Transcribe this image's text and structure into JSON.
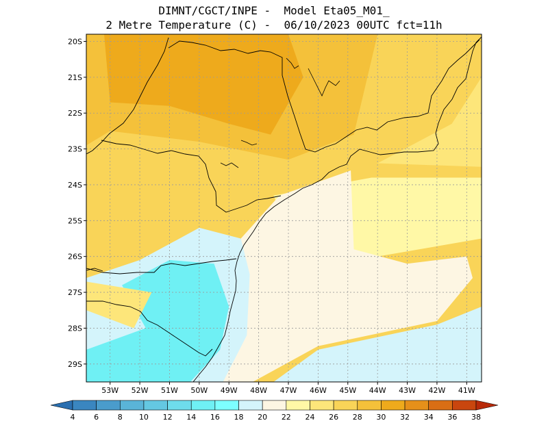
{
  "header": {
    "line1": "DIMNT/CGCT/INPE -  Model Eta05_M01_",
    "line2": "2 Metre Temperature (C) -  06/10/2023 00UTC fct=11h"
  },
  "lat_labels": [
    "20S",
    "21S",
    "22S",
    "23S",
    "24S",
    "25S",
    "26S",
    "27S",
    "28S",
    "29S"
  ],
  "lon_labels": [
    "53W",
    "52W",
    "51W",
    "50W",
    "49W",
    "48W",
    "47W",
    "46W",
    "45W",
    "44W",
    "43W",
    "42W",
    "41W"
  ],
  "colorbar": {
    "ticks": [
      "4",
      "6",
      "8",
      "10",
      "12",
      "14",
      "16",
      "18",
      "20",
      "22",
      "24",
      "26",
      "28",
      "30",
      "32",
      "34",
      "36",
      "38"
    ],
    "colors": [
      "#2a6fb0",
      "#3a86c0",
      "#4a9ccc",
      "#5ab4d8",
      "#64c8e2",
      "#6edcec",
      "#6ff0f4",
      "#7dffff",
      "#d4f4fb",
      "#fdf6e3",
      "#fff8a6",
      "#fde67a",
      "#f9d458",
      "#f4c13a",
      "#eeaa1c",
      "#e6901a",
      "#d96e14",
      "#c9460e",
      "#b82a0a"
    ]
  },
  "chart_data": {
    "type": "heatmap",
    "variable": "2 Metre Temperature (C)",
    "lon_range": [
      -53.8,
      -40.5
    ],
    "lat_range": [
      -29.5,
      -19.8
    ],
    "color_scale": [
      4,
      38
    ],
    "regions": [
      {
        "cls": "26-28",
        "lon_lat": [
          [
            -53.8,
            -19.8
          ],
          [
            -40.5,
            -19.8
          ],
          [
            -40.5,
            -22.6
          ],
          [
            -45,
            -23.4
          ],
          [
            -47.5,
            -24.3
          ],
          [
            -50,
            -24.8
          ],
          [
            -53.8,
            -24.9
          ]
        ]
      },
      {
        "cls": "28-30",
        "lon_lat": [
          [
            -53.8,
            -19.8
          ],
          [
            -44,
            -19.8
          ],
          [
            -44.8,
            -22.6
          ],
          [
            -47,
            -23.3
          ],
          [
            -50,
            -22.8
          ],
          [
            -53,
            -22.5
          ],
          [
            -53.8,
            -22.9
          ]
        ]
      },
      {
        "cls": "30-32",
        "lon_lat": [
          [
            -53.2,
            -19.8
          ],
          [
            -47,
            -19.8
          ],
          [
            -46.5,
            -21
          ],
          [
            -47.6,
            -22.6
          ],
          [
            -49,
            -22.3
          ],
          [
            -51,
            -21.8
          ],
          [
            -53,
            -21.7
          ]
        ]
      },
      {
        "cls": "24-26",
        "lon_lat": [
          [
            -40.5,
            -21
          ],
          [
            -40.5,
            -23.5
          ],
          [
            -44,
            -23.4
          ],
          [
            -41.5,
            -22.3
          ]
        ]
      },
      {
        "cls": "18-20",
        "lon_lat": [
          [
            -53.8,
            -26.6
          ],
          [
            -52,
            -26.1
          ],
          [
            -50,
            -25.2
          ],
          [
            -48.6,
            -25.5
          ],
          [
            -48.2,
            -26.5
          ],
          [
            -48.4,
            -28.3
          ],
          [
            -49.2,
            -29.5
          ],
          [
            -53.8,
            -29.5
          ]
        ]
      },
      {
        "cls": "16-18",
        "lon_lat": [
          [
            -52.6,
            -26.8
          ],
          [
            -51,
            -26.1
          ],
          [
            -49.5,
            -26.2
          ],
          [
            -49,
            -27.4
          ],
          [
            -49.3,
            -28.6
          ],
          [
            -50.3,
            -29.5
          ],
          [
            -53.8,
            -29.5
          ],
          [
            -53.8,
            -28.6
          ],
          [
            -51.8,
            -28
          ]
        ]
      },
      {
        "cls": "24-26",
        "lon_lat": [
          [
            -53.8,
            -27.5
          ],
          [
            -52.2,
            -28
          ],
          [
            -51.6,
            -27
          ],
          [
            -53.8,
            -26.7
          ]
        ]
      },
      {
        "cls": "22-24",
        "lon_lat": [
          [
            -47.5,
            -24.3
          ],
          [
            -44.2,
            -23.8
          ],
          [
            -40.5,
            -23.8
          ],
          [
            -40.5,
            -25.5
          ],
          [
            -44,
            -26
          ],
          [
            -46.8,
            -25.6
          ]
        ]
      },
      {
        "cls": "20-22",
        "lon_lat": [
          [
            -48.6,
            -25.5
          ],
          [
            -47.3,
            -24.3
          ],
          [
            -44.9,
            -23.6
          ],
          [
            -44.8,
            -25.8
          ],
          [
            -43,
            -26.2
          ],
          [
            -41,
            -26
          ],
          [
            -40.8,
            -26.6
          ],
          [
            -42,
            -27.8
          ],
          [
            -46,
            -28.5
          ],
          [
            -48.2,
            -29.5
          ],
          [
            -49.2,
            -29.5
          ],
          [
            -48.4,
            -28.2
          ],
          [
            -48.3,
            -26.5
          ]
        ]
      },
      {
        "cls": "18-20",
        "lon_lat": [
          [
            -47.5,
            -29.5
          ],
          [
            -46,
            -28.6
          ],
          [
            -42,
            -27.9
          ],
          [
            -40.5,
            -27.4
          ],
          [
            -40.5,
            -29.5
          ]
        ]
      }
    ],
    "grid_lines": {
      "lon_step": 1,
      "lat_step": 1
    }
  }
}
